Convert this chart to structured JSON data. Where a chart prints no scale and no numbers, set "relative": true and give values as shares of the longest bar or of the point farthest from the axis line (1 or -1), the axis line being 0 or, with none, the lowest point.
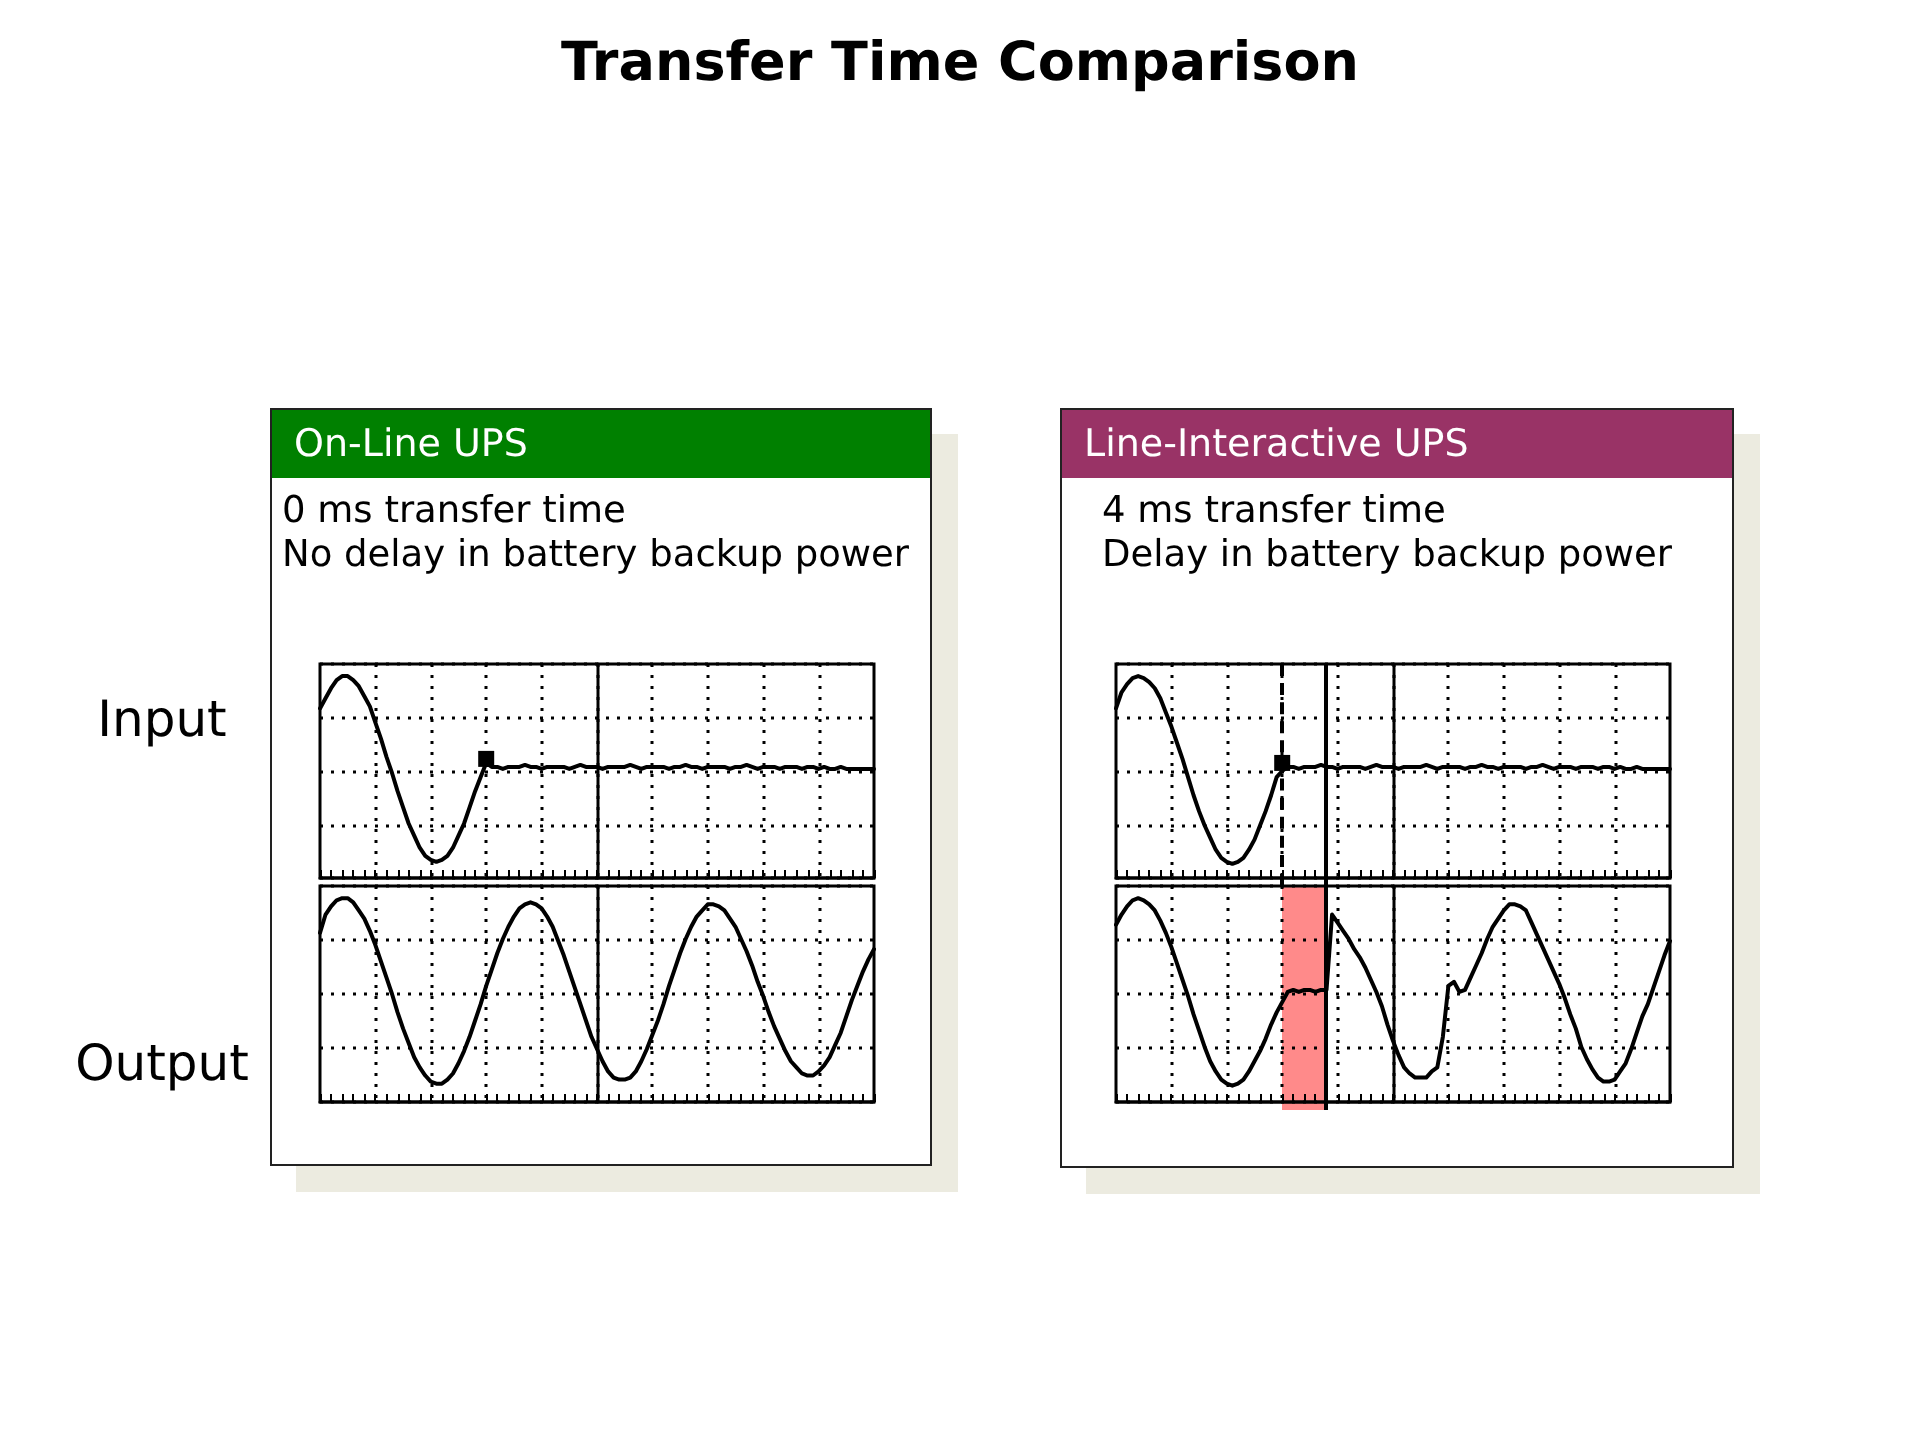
{
  "chart_data": [
    {
      "type": "line",
      "title": "On-Line UPS",
      "subtitle": "0 ms transfer time\nNo delay in battery backup power",
      "annotations": [
        "Transfer Time Comparison"
      ],
      "ylabel": "Input",
      "relative": true,
      "grid": true,
      "categories": [
        null,
        null,
        null,
        null,
        null,
        null,
        null,
        null,
        null,
        null,
        null,
        null,
        null,
        null,
        null,
        null,
        null,
        null,
        null,
        null,
        null,
        null,
        null,
        null,
        null,
        null,
        null,
        null,
        null,
        null,
        null,
        null,
        null,
        null,
        null,
        null,
        null,
        null,
        null,
        null,
        null,
        null,
        null,
        null,
        null,
        null,
        null,
        null,
        null,
        null,
        null,
        null,
        null,
        null,
        null,
        null,
        null,
        null,
        null,
        null,
        null,
        null,
        null,
        null,
        null,
        null,
        null,
        null,
        null,
        null,
        null,
        null,
        null,
        null,
        null,
        null,
        null,
        null,
        null,
        null,
        null,
        null,
        null,
        null,
        null,
        null,
        null,
        null,
        null,
        null,
        null,
        null,
        null,
        null,
        null,
        null,
        null,
        null,
        null,
        null,
        null
      ],
      "series": [
        {
          "color": "#000000",
          "values": [
            0.84,
            0.89,
            0.94,
            0.98,
            1.0,
            1.0,
            0.98,
            0.95,
            0.9,
            0.85,
            0.77,
            0.69,
            0.6,
            0.52,
            0.43,
            0.35,
            0.27,
            0.21,
            0.15,
            0.11,
            0.09,
            0.08,
            0.09,
            0.11,
            0.15,
            0.21,
            0.27,
            0.35,
            0.43,
            0.5,
            0.57,
            0.55,
            0.55,
            0.54,
            0.55,
            0.55,
            0.55,
            0.56,
            0.55,
            0.55,
            0.54,
            0.55,
            0.55,
            0.55,
            0.55,
            0.54,
            0.55,
            0.56,
            0.55,
            0.55,
            0.55,
            0.54,
            0.55,
            0.55,
            0.55,
            0.55,
            0.56,
            0.55,
            0.54,
            0.55,
            0.55,
            0.55,
            0.55,
            0.54,
            0.55,
            0.55,
            0.56,
            0.55,
            0.55,
            0.54,
            0.55,
            0.55,
            0.55,
            0.55,
            0.54,
            0.55,
            0.55,
            0.56,
            0.55,
            0.54,
            0.55,
            0.55,
            0.55,
            0.54,
            0.55,
            0.55,
            0.55,
            0.54,
            0.55,
            0.55,
            0.54,
            0.55,
            0.54,
            0.54,
            0.55,
            0.54,
            0.54,
            0.54,
            0.54,
            0.54,
            0.54
          ]
        },
        {
          "type": "line",
          "marker": "square",
          "color": "#000000",
          "values": [
            null,
            null,
            null,
            null,
            null,
            null,
            null,
            null,
            null,
            null,
            null,
            null,
            null,
            null,
            null,
            null,
            null,
            null,
            null,
            null,
            null,
            null,
            null,
            null,
            null,
            null,
            null,
            null,
            null,
            null,
            0.59,
            null,
            null,
            null,
            null,
            null,
            null,
            null,
            null,
            null,
            null,
            null,
            null,
            null,
            null,
            null,
            null,
            null,
            null,
            null,
            null,
            null,
            null,
            null,
            null,
            null,
            null,
            null,
            null,
            null,
            null,
            null,
            null,
            null,
            null,
            null,
            null,
            null,
            null,
            null,
            null,
            null,
            null,
            null,
            null,
            null,
            null,
            null,
            null,
            null,
            null,
            null,
            null,
            null,
            null,
            null,
            null,
            null,
            null,
            null,
            null,
            null,
            null,
            null,
            null,
            null,
            null,
            null,
            null,
            null,
            null
          ]
        }
      ]
    },
    {
      "type": "line",
      "ylabel": "Output",
      "relative": true,
      "grid": true,
      "categories": [
        null,
        null,
        null,
        null,
        null,
        null,
        null,
        null,
        null,
        null,
        null,
        null,
        null,
        null,
        null,
        null,
        null,
        null,
        null,
        null,
        null,
        null,
        null,
        null,
        null,
        null,
        null,
        null,
        null,
        null,
        null,
        null,
        null,
        null,
        null,
        null,
        null,
        null,
        null,
        null,
        null,
        null,
        null,
        null,
        null,
        null,
        null,
        null,
        null,
        null,
        null,
        null,
        null,
        null,
        null,
        null,
        null,
        null,
        null,
        null,
        null,
        null,
        null,
        null,
        null,
        null,
        null,
        null,
        null,
        null,
        null,
        null,
        null,
        null,
        null,
        null,
        null,
        null,
        null,
        null,
        null,
        null,
        null,
        null,
        null,
        null,
        null,
        null,
        null,
        null,
        null,
        null,
        null,
        null,
        null,
        null,
        null,
        null,
        null,
        null,
        null
      ],
      "series": [
        {
          "color": "#000000",
          "values": [
            0.83,
            0.92,
            0.96,
            0.99,
            1.0,
            1.0,
            0.98,
            0.94,
            0.9,
            0.84,
            0.77,
            0.69,
            0.61,
            0.53,
            0.44,
            0.36,
            0.29,
            0.22,
            0.17,
            0.13,
            0.1,
            0.09,
            0.09,
            0.11,
            0.14,
            0.19,
            0.25,
            0.32,
            0.4,
            0.48,
            0.57,
            0.65,
            0.73,
            0.8,
            0.86,
            0.91,
            0.95,
            0.97,
            0.98,
            0.97,
            0.95,
            0.91,
            0.86,
            0.79,
            0.72,
            0.64,
            0.56,
            0.48,
            0.4,
            0.32,
            0.26,
            0.2,
            0.15,
            0.12,
            0.11,
            0.11,
            0.12,
            0.15,
            0.2,
            0.26,
            0.33,
            0.4,
            0.48,
            0.57,
            0.65,
            0.73,
            0.8,
            0.86,
            0.91,
            0.94,
            0.97,
            0.97,
            0.96,
            0.94,
            0.9,
            0.86,
            0.8,
            0.74,
            0.67,
            0.59,
            0.52,
            0.44,
            0.37,
            0.31,
            0.25,
            0.2,
            0.17,
            0.14,
            0.13,
            0.13,
            0.15,
            0.18,
            0.22,
            0.28,
            0.34,
            0.42,
            0.5,
            0.57,
            0.64,
            0.7,
            0.75
          ]
        }
      ]
    },
    {
      "type": "line",
      "title": "Line-Interactive UPS",
      "subtitle": "4 ms transfer time\nDelay in battery backup power",
      "relative": true,
      "grid": true,
      "categories": [
        null,
        null,
        null,
        null,
        null,
        null,
        null,
        null,
        null,
        null,
        null,
        null,
        null,
        null,
        null,
        null,
        null,
        null,
        null,
        null,
        null,
        null,
        null,
        null,
        null,
        null,
        null,
        null,
        null,
        null,
        null,
        null,
        null,
        null,
        null,
        null,
        null,
        null,
        null,
        null,
        null,
        null,
        null,
        null,
        null,
        null,
        null,
        null,
        null,
        null,
        null,
        null,
        null,
        null,
        null,
        null,
        null,
        null,
        null,
        null,
        null,
        null,
        null,
        null,
        null,
        null,
        null,
        null,
        null,
        null,
        null,
        null,
        null,
        null,
        null,
        null,
        null,
        null,
        null,
        null,
        null,
        null,
        null,
        null,
        null,
        null,
        null,
        null,
        null,
        null,
        null,
        null,
        null,
        null,
        null,
        null,
        null,
        null,
        null,
        null,
        null
      ],
      "series": [
        {
          "color": "#000000",
          "values": [
            0.84,
            0.92,
            0.96,
            0.99,
            1.0,
            0.99,
            0.97,
            0.94,
            0.89,
            0.82,
            0.75,
            0.67,
            0.59,
            0.5,
            0.41,
            0.33,
            0.26,
            0.2,
            0.14,
            0.1,
            0.08,
            0.07,
            0.08,
            0.1,
            0.14,
            0.19,
            0.26,
            0.33,
            0.41,
            0.5,
            0.53,
            0.55,
            0.55,
            0.54,
            0.55,
            0.55,
            0.55,
            0.56,
            0.55,
            0.55,
            0.54,
            0.55,
            0.55,
            0.55,
            0.55,
            0.54,
            0.55,
            0.56,
            0.55,
            0.55,
            0.55,
            0.54,
            0.55,
            0.55,
            0.55,
            0.55,
            0.56,
            0.55,
            0.54,
            0.55,
            0.55,
            0.55,
            0.55,
            0.54,
            0.55,
            0.55,
            0.56,
            0.55,
            0.55,
            0.54,
            0.55,
            0.55,
            0.55,
            0.55,
            0.54,
            0.55,
            0.55,
            0.56,
            0.55,
            0.54,
            0.55,
            0.55,
            0.55,
            0.54,
            0.55,
            0.55,
            0.55,
            0.54,
            0.55,
            0.55,
            0.54,
            0.55,
            0.54,
            0.54,
            0.55,
            0.54,
            0.54,
            0.54,
            0.54,
            0.54,
            0.54
          ]
        },
        {
          "type": "line",
          "marker": "square",
          "color": "#000000",
          "values": [
            null,
            null,
            null,
            null,
            null,
            null,
            null,
            null,
            null,
            null,
            null,
            null,
            null,
            null,
            null,
            null,
            null,
            null,
            null,
            null,
            null,
            null,
            null,
            null,
            null,
            null,
            null,
            null,
            null,
            null,
            0.57,
            null,
            null,
            null,
            null,
            null,
            null,
            null,
            null,
            null,
            null,
            null,
            null,
            null,
            null,
            null,
            null,
            null,
            null,
            null,
            null,
            null,
            null,
            null,
            null,
            null,
            null,
            null,
            null,
            null,
            null,
            null,
            null,
            null,
            null,
            null,
            null,
            null,
            null,
            null,
            null,
            null,
            null,
            null,
            null,
            null,
            null,
            null,
            null,
            null,
            null,
            null,
            null,
            null,
            null,
            null,
            null,
            null,
            null,
            null,
            null,
            null,
            null,
            null,
            null,
            null,
            null,
            null,
            null,
            null,
            null
          ]
        }
      ]
    },
    {
      "type": "line",
      "relative": true,
      "grid": true,
      "categories": [
        null,
        null,
        null,
        null,
        null,
        null,
        null,
        null,
        null,
        null,
        null,
        null,
        null,
        null,
        null,
        null,
        null,
        null,
        null,
        null,
        null,
        null,
        null,
        null,
        null,
        null,
        null,
        null,
        null,
        null,
        null,
        null,
        null,
        null,
        null,
        null,
        null,
        null,
        null,
        null,
        null,
        null,
        null,
        null,
        null,
        null,
        null,
        null,
        null,
        null,
        null,
        null,
        null,
        null,
        null,
        null,
        null,
        null,
        null,
        null,
        null,
        null,
        null,
        null,
        null,
        null,
        null,
        null,
        null,
        null,
        null,
        null,
        null,
        null,
        null,
        null,
        null,
        null,
        null,
        null,
        null,
        null,
        null,
        null,
        null,
        null,
        null,
        null,
        null,
        null,
        null,
        null,
        null,
        null,
        null,
        null,
        null,
        null,
        null,
        null,
        null
      ],
      "series": [
        {
          "color": "#000000",
          "values": [
            0.87,
            0.92,
            0.96,
            0.99,
            1.0,
            0.99,
            0.97,
            0.94,
            0.89,
            0.83,
            0.76,
            0.68,
            0.6,
            0.52,
            0.43,
            0.35,
            0.27,
            0.2,
            0.15,
            0.11,
            0.09,
            0.08,
            0.09,
            0.11,
            0.15,
            0.2,
            0.25,
            0.31,
            0.38,
            0.44,
            0.49,
            0.54,
            0.55,
            0.54,
            0.55,
            0.55,
            0.54,
            0.55,
            0.55,
            0.92,
            0.88,
            0.84,
            0.8,
            0.75,
            0.71,
            0.66,
            0.6,
            0.54,
            0.47,
            0.38,
            0.3,
            0.23,
            0.17,
            0.14,
            0.12,
            0.12,
            0.12,
            0.15,
            0.17,
            0.32,
            0.57,
            0.59,
            0.54,
            0.55,
            0.61,
            0.67,
            0.73,
            0.8,
            0.86,
            0.9,
            0.94,
            0.97,
            0.97,
            0.96,
            0.94,
            0.88,
            0.82,
            0.76,
            0.7,
            0.64,
            0.58,
            0.51,
            0.43,
            0.36,
            0.27,
            0.21,
            0.16,
            0.12,
            0.1,
            0.1,
            0.11,
            0.15,
            0.19,
            0.26,
            0.34,
            0.42,
            0.48,
            0.56,
            0.64,
            0.72,
            0.79
          ]
        }
      ]
    }
  ]
}
